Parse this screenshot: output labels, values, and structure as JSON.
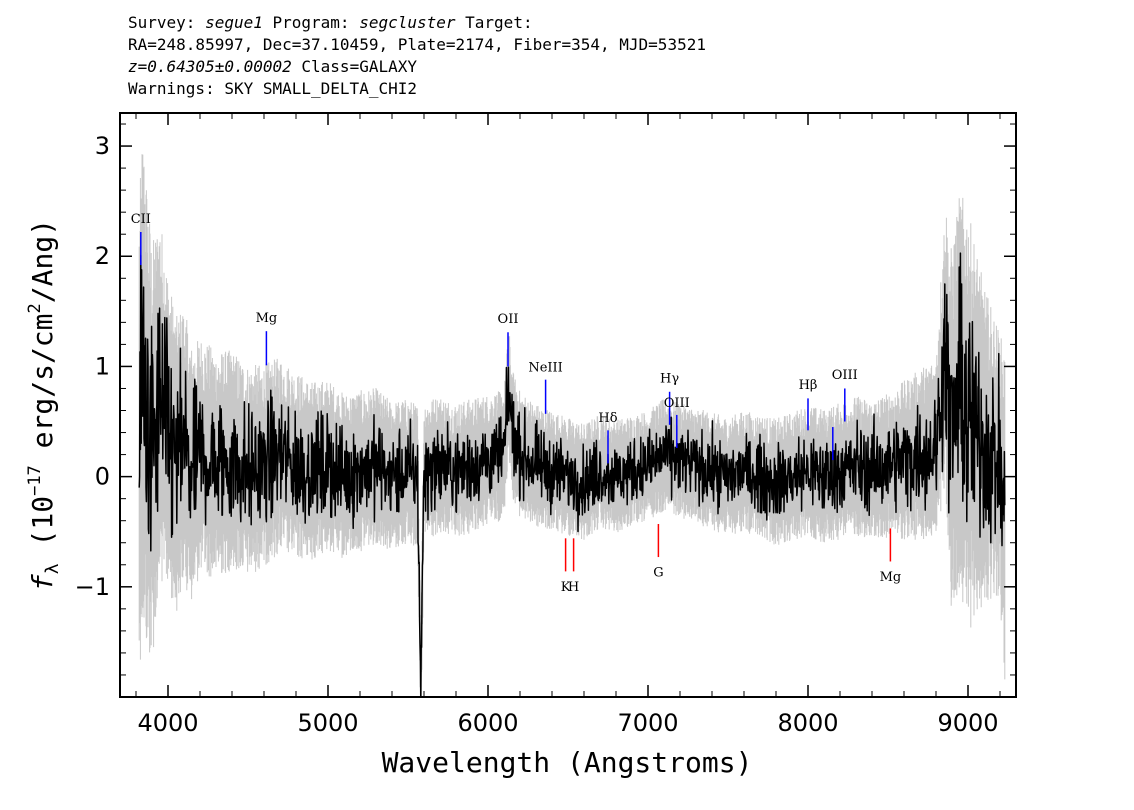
{
  "header": {
    "l1_a": "Survey: ",
    "survey": "segue1",
    "l1_b": " Program: ",
    "program": "segcluster",
    "l1_c": " Target:",
    "line2": "RA=248.85997, Dec=37.10459, Plate=2174, Fiber=354, MJD=53521",
    "z": "z=0.64305±0.00002",
    "class_text": " Class=GALAXY",
    "warnings": "Warnings: SKY SMALL_DELTA_CHI2"
  },
  "chart_data": {
    "type": "line",
    "xlabel": "Wavelength (Angstroms)",
    "ylabel_prefix": "f",
    "ylabel_sub": "λ",
    "ylabel_rest": " (10",
    "ylabel_exp": "−17",
    "ylabel_units": " erg/s/cm",
    "ylabel_units_exp": "2",
    "ylabel_tail": "/Ang)",
    "xlim": [
      3700,
      9300
    ],
    "ylim": [
      -2.0,
      3.3
    ],
    "xticks": [
      4000,
      5000,
      6000,
      7000,
      8000,
      9000
    ],
    "xtick_labels": [
      "4000",
      "5000",
      "6000",
      "7000",
      "8000",
      "9000"
    ],
    "yticks": [
      -1,
      0,
      1,
      2,
      3
    ],
    "ytick_labels": [
      "−1",
      "0",
      "1",
      "2",
      "3"
    ],
    "series": [
      {
        "role": "flux",
        "color": "#000000",
        "x": [
          3820,
          3840,
          3870,
          3900,
          3950,
          4000,
          4050,
          4100,
          4150,
          4200,
          4300,
          4400,
          4500,
          4600,
          4700,
          4800,
          4900,
          5000,
          5100,
          5200,
          5300,
          5400,
          5500,
          5560,
          5580,
          5600,
          5700,
          5800,
          5900,
          6000,
          6100,
          6130,
          6150,
          6200,
          6300,
          6400,
          6500,
          6600,
          6700,
          6800,
          6900,
          7000,
          7100,
          7200,
          7300,
          7400,
          7500,
          7600,
          7700,
          7800,
          7900,
          8000,
          8100,
          8200,
          8300,
          8400,
          8500,
          8600,
          8700,
          8800,
          8860,
          8880,
          8900,
          8950,
          9000,
          9100,
          9150,
          9200,
          9230
        ],
        "y": [
          0.3,
          0.9,
          0.5,
          0.2,
          0.7,
          0.4,
          0.1,
          0.3,
          0.0,
          0.2,
          0.1,
          0.15,
          0.05,
          0.1,
          0.2,
          0.1,
          0.05,
          0.1,
          0.0,
          0.05,
          0.1,
          0.0,
          0.05,
          0.0,
          -1.9,
          0.05,
          0.1,
          0.05,
          0.1,
          0.15,
          0.2,
          0.8,
          0.4,
          0.2,
          0.1,
          0.05,
          0.0,
          -0.05,
          0.05,
          0.0,
          0.05,
          0.1,
          0.2,
          0.15,
          0.1,
          0.05,
          0.0,
          0.05,
          0.0,
          -0.05,
          0.0,
          0.05,
          0.0,
          0.05,
          0.1,
          0.05,
          0.1,
          0.15,
          0.2,
          0.25,
          1.2,
          0.6,
          0.4,
          0.8,
          0.5,
          0.3,
          0.2,
          0.1,
          -0.4
        ]
      },
      {
        "role": "noise",
        "color": "#c8c8c8",
        "x": [
          3820,
          3850,
          3900,
          4000,
          4200,
          4500,
          5000,
          5500,
          6000,
          6500,
          7000,
          7500,
          8000,
          8500,
          8800,
          8900,
          9000,
          9100,
          9200,
          9230
        ],
        "y": [
          1.8,
          1.9,
          1.6,
          1.2,
          0.9,
          0.8,
          0.65,
          0.55,
          0.5,
          0.45,
          0.42,
          0.45,
          0.5,
          0.55,
          0.7,
          1.4,
          1.6,
          1.2,
          1.0,
          1.3
        ]
      }
    ],
    "emission_lines": [
      {
        "label": "CII",
        "x": 3830,
        "top": 2.22,
        "bottom": 1.92,
        "label_y": 2.34
      },
      {
        "label": "Mg",
        "x": 4615,
        "top": 1.32,
        "bottom": 1.01,
        "label_y": 1.44
      },
      {
        "label": "OII",
        "x": 6125,
        "top": 1.31,
        "bottom": 1.0,
        "label_y": 1.43
      },
      {
        "label": "NeIII",
        "x": 6360,
        "top": 0.88,
        "bottom": 0.57,
        "label_y": 0.99
      },
      {
        "label": "Hδ",
        "x": 6750,
        "top": 0.42,
        "bottom": 0.12,
        "label_y": 0.53
      },
      {
        "label": "Hγ",
        "x": 7135,
        "top": 0.77,
        "bottom": 0.47,
        "label_y": 0.89
      },
      {
        "label": "OIII",
        "x": 7180,
        "top": 0.56,
        "bottom": 0.26,
        "label_y": 0.67
      },
      {
        "label": "Hβ",
        "x": 8000,
        "top": 0.71,
        "bottom": 0.42,
        "label_y": 0.83
      },
      {
        "label": "",
        "x": 8155,
        "top": 0.45,
        "bottom": 0.15,
        "label_y": 0.5
      },
      {
        "label": "OIII",
        "x": 8230,
        "top": 0.8,
        "bottom": 0.5,
        "label_y": 0.92
      }
    ],
    "absorption_lines": [
      {
        "label": "K",
        "x": 6485,
        "top": -0.56,
        "bottom": -0.86,
        "label_y": -1.0
      },
      {
        "label": "H",
        "x": 6535,
        "top": -0.56,
        "bottom": -0.86,
        "label_y": -1.0
      },
      {
        "label": "G",
        "x": 7065,
        "top": -0.43,
        "bottom": -0.73,
        "label_y": -0.87
      },
      {
        "label": "Mg",
        "x": 8515,
        "top": -0.47,
        "bottom": -0.77,
        "label_y": -0.91
      }
    ],
    "emission_color": "#0000ff",
    "absorption_color": "#ff0000"
  }
}
